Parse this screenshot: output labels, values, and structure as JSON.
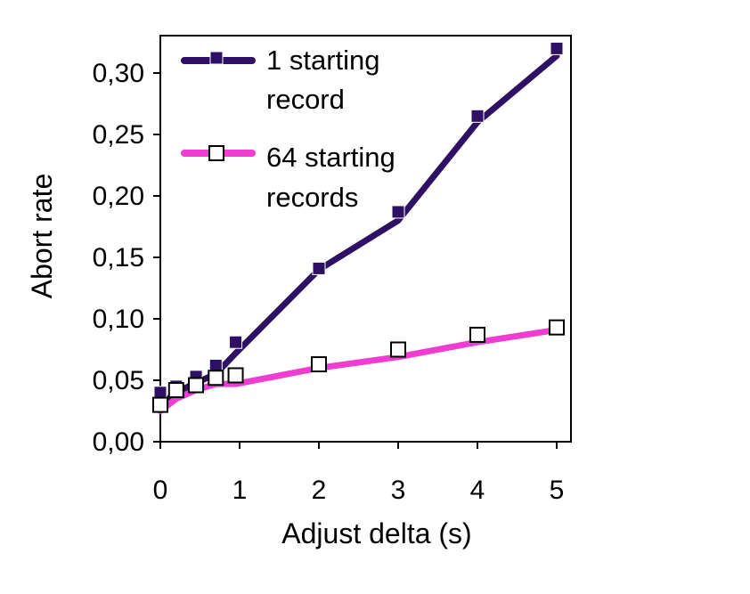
{
  "chart_data": {
    "type": "line",
    "xlabel": "Adjust delta (s)",
    "ylabel": "Abort rate",
    "xlim": [
      0,
      5
    ],
    "ylim": [
      0,
      0.3
    ],
    "x_ticks": [
      "0",
      "1",
      "2",
      "3",
      "4",
      "5"
    ],
    "y_ticks": [
      "0,00",
      "0,05",
      "0,10",
      "0,15",
      "0,20",
      "0,25",
      "0,30"
    ],
    "grid": false,
    "legend_position": "top-left",
    "series": [
      {
        "name_lines": [
          "1 starting",
          "record"
        ],
        "color": "#2e1065",
        "marker": "filled-square",
        "x": [
          0,
          0.2,
          0.45,
          0.7,
          0.95,
          2,
          3,
          4,
          5
        ],
        "y": [
          0.04,
          0.045,
          0.053,
          0.062,
          0.081,
          0.141,
          0.187,
          0.265,
          0.32
        ],
        "fit_y": [
          0.03,
          0.04,
          0.048,
          0.055,
          0.072,
          0.14,
          0.18,
          0.26,
          0.314
        ]
      },
      {
        "name_lines": [
          "64 starting",
          "records"
        ],
        "color": "#ee3dd0",
        "marker": "open-square",
        "x": [
          0,
          0.2,
          0.45,
          0.7,
          0.95,
          2,
          3,
          4,
          5
        ],
        "y": [
          0.03,
          0.042,
          0.046,
          0.052,
          0.054,
          0.063,
          0.075,
          0.087,
          0.093
        ],
        "fit_y": [
          0.025,
          0.035,
          0.042,
          0.047,
          0.047,
          0.06,
          0.069,
          0.081,
          0.091
        ]
      }
    ]
  }
}
